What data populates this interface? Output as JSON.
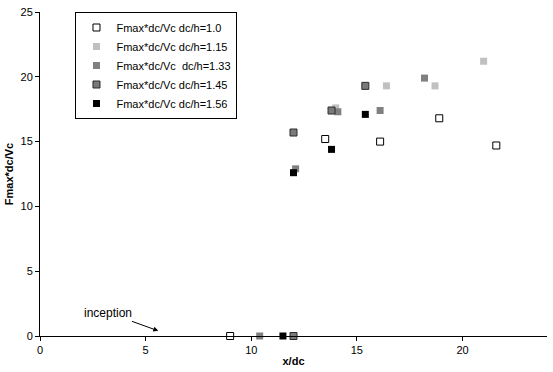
{
  "chart_data": {
    "type": "scatter",
    "xlabel": "x/dc",
    "ylabel": "Fmax*dc/Vc",
    "xlim": [
      0,
      24
    ],
    "xticks": [
      0,
      5,
      10,
      15,
      20
    ],
    "ylim": [
      0,
      25
    ],
    "yticks": [
      0,
      5,
      10,
      15,
      20,
      25
    ],
    "grid": false,
    "legend": "upper left",
    "marker": "square",
    "annotations": [
      {
        "text": "inception",
        "x": 5.6,
        "y": 0.4
      }
    ],
    "series": [
      {
        "name": "Fmax*dc/Vc dc/h=1.0",
        "color": "#ffffff",
        "x": [
          9.0,
          13.5,
          16.1,
          18.9,
          21.6
        ],
        "values": [
          0,
          15.2,
          15.0,
          16.8,
          14.7
        ]
      },
      {
        "name": "Fmax*dc/Vc dc/h=1.15",
        "color": "#c0c0c0",
        "x": [
          14.0,
          16.4,
          18.7,
          21.0
        ],
        "values": [
          17.6,
          19.3,
          19.3,
          21.2
        ]
      },
      {
        "name": "Fmax*dc/Vc  dc/h=1.33",
        "color": "#808080",
        "x": [
          10.4,
          12.1,
          14.1,
          16.1,
          18.2
        ],
        "values": [
          0,
          12.9,
          17.3,
          17.4,
          19.9
        ]
      },
      {
        "name": "Fmax*dc/Vc dc/h=1.45",
        "color": "#7a7a7a",
        "x": [
          12.0,
          12.0,
          13.8,
          15.4
        ],
        "values": [
          0,
          15.7,
          17.4,
          19.3
        ]
      },
      {
        "name": "Fmax*dc/Vc dc/h=1.56",
        "color": "#000000",
        "x": [
          11.5,
          12.0,
          13.8,
          15.4
        ],
        "values": [
          0,
          12.6,
          14.4,
          17.1
        ]
      }
    ]
  }
}
